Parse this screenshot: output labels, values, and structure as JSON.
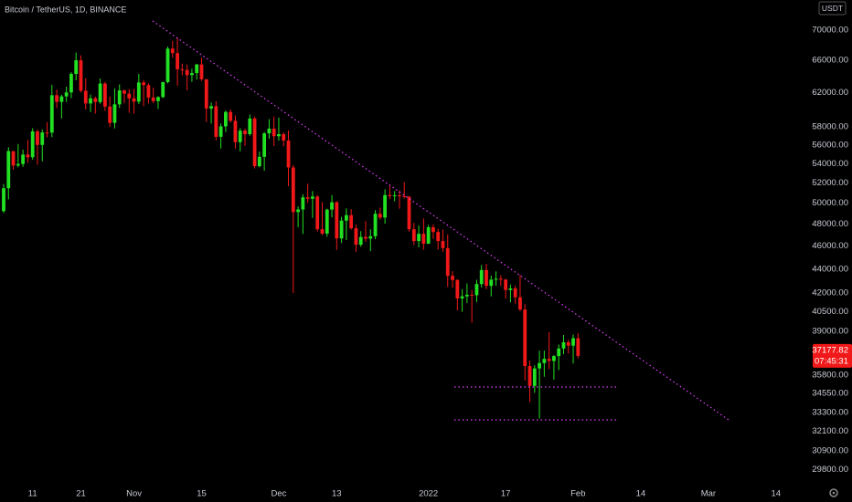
{
  "chart_data": {
    "type": "candlestick",
    "title": "Bitcoin / TetherUS, 1D, BINANCE",
    "currency": "USDT",
    "countdown": "07:45:31",
    "log_scale": true,
    "up_color": "#22e022",
    "down_color": "#f01818",
    "categories": [
      null,
      null,
      null,
      null,
      null,
      null,
      "11",
      null,
      null,
      null,
      null,
      null,
      null,
      null,
      null,
      null,
      "21",
      null,
      null,
      null,
      null,
      null,
      null,
      null,
      null,
      null,
      null,
      "Nov",
      null,
      null,
      null,
      null,
      null,
      null,
      null,
      null,
      null,
      null,
      null,
      null,
      null,
      "15",
      null,
      null,
      null,
      null,
      null,
      null,
      null,
      null,
      null,
      null,
      null,
      null,
      null,
      null,
      null,
      "Dec",
      null,
      null,
      null,
      null,
      null,
      null,
      null,
      null,
      null,
      null,
      null,
      "13",
      null,
      null,
      null,
      null,
      null,
      null,
      null,
      null,
      null,
      null,
      null,
      null,
      null,
      null,
      null,
      null,
      null,
      null,
      "2022",
      null,
      null,
      null,
      null,
      null,
      null,
      null,
      null,
      null,
      null,
      null,
      null,
      null,
      null,
      null,
      "17",
      null,
      null,
      null,
      null,
      null,
      null,
      null,
      null,
      null,
      null,
      null,
      null,
      null,
      null,
      "Feb",
      null,
      null,
      null,
      null,
      null,
      null,
      null,
      null,
      null,
      null,
      null,
      null,
      "14",
      null,
      null,
      null,
      null,
      null,
      null,
      null,
      null,
      null,
      null,
      null,
      null,
      null,
      "Mar",
      null,
      null,
      null,
      null,
      null,
      null,
      null,
      null,
      null,
      null,
      null,
      null,
      null,
      "14"
    ],
    "open": [
      49240,
      51480,
      55330,
      53800,
      53960,
      54960,
      54680,
      57490,
      56000,
      57370,
      57350,
      61670,
      60880,
      61530,
      62010,
      64280,
      66000,
      62210,
      60690,
      61300,
      60860,
      63080,
      60330,
      58450,
      60590,
      62250,
      61860,
      61300,
      60910,
      63220,
      62900,
      61400,
      60970,
      61450,
      63270,
      67520,
      66930,
      64860,
      64770,
      64130,
      64380,
      65470,
      63620,
      60100,
      60370,
      56890,
      58050,
      59700,
      58680,
      56300,
      57570,
      57180,
      58950,
      53730,
      54720,
      57270,
      57800,
      56950,
      57180,
      56480,
      53600,
      49150,
      49400,
      50580,
      50440,
      50660,
      47540,
      47140,
      49390,
      50100,
      46700,
      48340,
      48860,
      47630,
      46130,
      46830,
      46680,
      46900,
      48990,
      48630,
      50800,
      50700,
      50780,
      50700,
      50640,
      47540,
      46460,
      47120,
      46220,
      47720,
      47290,
      46460,
      45830,
      43430,
      43080,
      41560,
      41730,
      41860,
      41820,
      42740,
      43920,
      42590,
      43100,
      43180,
      43110,
      42250,
      42380,
      41660,
      40680,
      36450,
      35070,
      36280,
      36660,
      36960,
      36810,
      37160,
      37710,
      38170,
      37920,
      38470,
      null,
      null,
      null,
      null,
      null,
      null,
      null,
      null,
      null,
      null,
      null,
      null,
      null,
      null,
      null,
      null,
      null,
      null,
      null,
      null,
      null,
      null,
      null,
      null,
      null,
      null,
      null,
      null,
      null,
      null,
      null,
      null,
      null,
      null,
      null,
      null,
      null,
      null,
      null,
      null,
      null
    ],
    "high": [
      51900,
      55750,
      55330,
      56100,
      55490,
      56560,
      57840,
      57680,
      57700,
      58530,
      62930,
      62340,
      61720,
      62700,
      64490,
      67000,
      66640,
      63730,
      61750,
      61490,
      63710,
      63290,
      61500,
      62500,
      62980,
      62360,
      62420,
      62440,
      64270,
      63500,
      63120,
      62590,
      61560,
      63290,
      67790,
      68530,
      69000,
      65580,
      65460,
      64930,
      65550,
      66340,
      63620,
      60800,
      60960,
      58370,
      59860,
      60000,
      59300,
      57850,
      57800,
      59400,
      59150,
      55280,
      57440,
      58870,
      59170,
      59050,
      57380,
      57600,
      53860,
      49700,
      50880,
      51950,
      51200,
      50800,
      50100,
      49480,
      50800,
      50200,
      48700,
      49500,
      49430,
      47990,
      47360,
      48300,
      47540,
      49330,
      49580,
      51370,
      51830,
      51200,
      51280,
      52080,
      50700,
      48140,
      47900,
      48550,
      47950,
      47990,
      47570,
      47510,
      47070,
      43820,
      43140,
      42300,
      42790,
      42250,
      43100,
      44350,
      44460,
      43450,
      43800,
      43480,
      43180,
      42700,
      42600,
      43500,
      41100,
      36840,
      36500,
      37550,
      37550,
      38920,
      37230,
      38000,
      38720,
      38360,
      38740,
      38850,
      null,
      null,
      null,
      null,
      null,
      null,
      null,
      null,
      null,
      null,
      null,
      null,
      null,
      null,
      null,
      null,
      null,
      null,
      null,
      null,
      null,
      null,
      null,
      null,
      null,
      null,
      null,
      null,
      null,
      null,
      null,
      null,
      null,
      null,
      null,
      null,
      null,
      null,
      null,
      null,
      null
    ],
    "low": [
      49060,
      50380,
      53360,
      53620,
      53660,
      54090,
      54420,
      53880,
      54250,
      56820,
      56850,
      60150,
      58960,
      60880,
      61320,
      63480,
      62000,
      60000,
      59700,
      59510,
      60650,
      59820,
      58000,
      57820,
      60170,
      60720,
      59600,
      59500,
      60620,
      60380,
      60680,
      60720,
      60050,
      61320,
      63110,
      66330,
      62820,
      64100,
      62250,
      63300,
      63580,
      63400,
      58560,
      58370,
      56500,
      55600,
      57420,
      58470,
      55610,
      55300,
      55900,
      57000,
      53500,
      53610,
      53260,
      56670,
      55880,
      56460,
      55840,
      51680,
      42000,
      47730,
      47100,
      50040,
      48600,
      47320,
      47000,
      46850,
      48650,
      45670,
      46290,
      46550,
      47510,
      45500,
      45950,
      46400,
      45560,
      46630,
      48450,
      48050,
      50400,
      50200,
      49470,
      50460,
      47320,
      46100,
      45900,
      45680,
      46210,
      46650,
      45700,
      45500,
      42500,
      42430,
      40610,
      40500,
      41200,
      39650,
      41270,
      42450,
      42310,
      41730,
      42600,
      42580,
      41540,
      41250,
      41140,
      40550,
      35440,
      34000,
      34600,
      32920,
      35700,
      36230,
      35500,
      36160,
      37300,
      37350,
      36630,
      37000,
      null,
      null,
      null,
      null,
      null,
      null,
      null,
      null,
      null,
      null,
      null,
      null,
      null,
      null,
      null,
      null,
      null,
      null,
      null,
      null,
      null,
      null,
      null,
      null,
      null,
      null,
      null,
      null,
      null,
      null,
      null,
      null,
      null,
      null,
      null,
      null,
      null,
      null,
      null,
      null,
      null
    ],
    "close": [
      51480,
      55330,
      53800,
      53960,
      54960,
      54680,
      57490,
      56000,
      57370,
      57350,
      61670,
      60880,
      61530,
      62010,
      64280,
      66000,
      62210,
      60690,
      61300,
      60860,
      63080,
      60330,
      58450,
      60590,
      62250,
      61860,
      61300,
      60910,
      63220,
      62900,
      61400,
      60970,
      61450,
      63270,
      67520,
      66930,
      64860,
      64770,
      64130,
      64380,
      65470,
      63620,
      60100,
      60370,
      56890,
      58050,
      59700,
      58680,
      56300,
      57570,
      57180,
      58950,
      53730,
      54720,
      57270,
      57800,
      56950,
      57180,
      56480,
      53600,
      49150,
      49400,
      50580,
      50440,
      50660,
      47540,
      47140,
      49390,
      50100,
      46700,
      48340,
      48860,
      47630,
      46130,
      46830,
      46680,
      46900,
      48990,
      48630,
      50800,
      50700,
      50780,
      50700,
      50640,
      47540,
      46460,
      47120,
      46220,
      47720,
      47290,
      46460,
      45830,
      43430,
      43080,
      41560,
      41730,
      41860,
      41820,
      42740,
      43920,
      42590,
      43100,
      43180,
      43110,
      42250,
      42380,
      41660,
      40680,
      36450,
      35070,
      36280,
      36660,
      36960,
      36810,
      37160,
      37710,
      38170,
      37920,
      38470,
      37177.82,
      null,
      null,
      null,
      null,
      null,
      null,
      null,
      null,
      null,
      null,
      null,
      null,
      null,
      null,
      null,
      null,
      null,
      null,
      null,
      null,
      null,
      null,
      null,
      null,
      null,
      null,
      null,
      null,
      null,
      null,
      null,
      null,
      null,
      null,
      null,
      null,
      null,
      null,
      null,
      null,
      null
    ],
    "ylim": [
      29000,
      74200
    ],
    "yticks": [
      {
        "value": 70000,
        "label": "70000.00"
      },
      {
        "value": 66000,
        "label": "66000.00"
      },
      {
        "value": 62000,
        "label": "62000.00"
      },
      {
        "value": 58000,
        "label": "58000.00"
      },
      {
        "value": 56000,
        "label": "56000.00"
      },
      {
        "value": 54000,
        "label": "54000.00"
      },
      {
        "value": 52000,
        "label": "52000.00"
      },
      {
        "value": 50000,
        "label": "50000.00"
      },
      {
        "value": 48000,
        "label": "48000.00"
      },
      {
        "value": 46000,
        "label": "46000.00"
      },
      {
        "value": 44000,
        "label": "44000.00"
      },
      {
        "value": 42000,
        "label": "42000.00"
      },
      {
        "value": 40500,
        "label": "40500.00"
      },
      {
        "value": 39000,
        "label": "39000.00"
      },
      {
        "value": 35800,
        "label": "35800.00"
      },
      {
        "value": 34550,
        "label": "34550.00"
      },
      {
        "value": 33300,
        "label": "33300.00"
      },
      {
        "value": 32100,
        "label": "32100.00"
      },
      {
        "value": 30900,
        "label": "30900.00"
      },
      {
        "value": 29800,
        "label": "29800.00"
      }
    ]
  }
}
